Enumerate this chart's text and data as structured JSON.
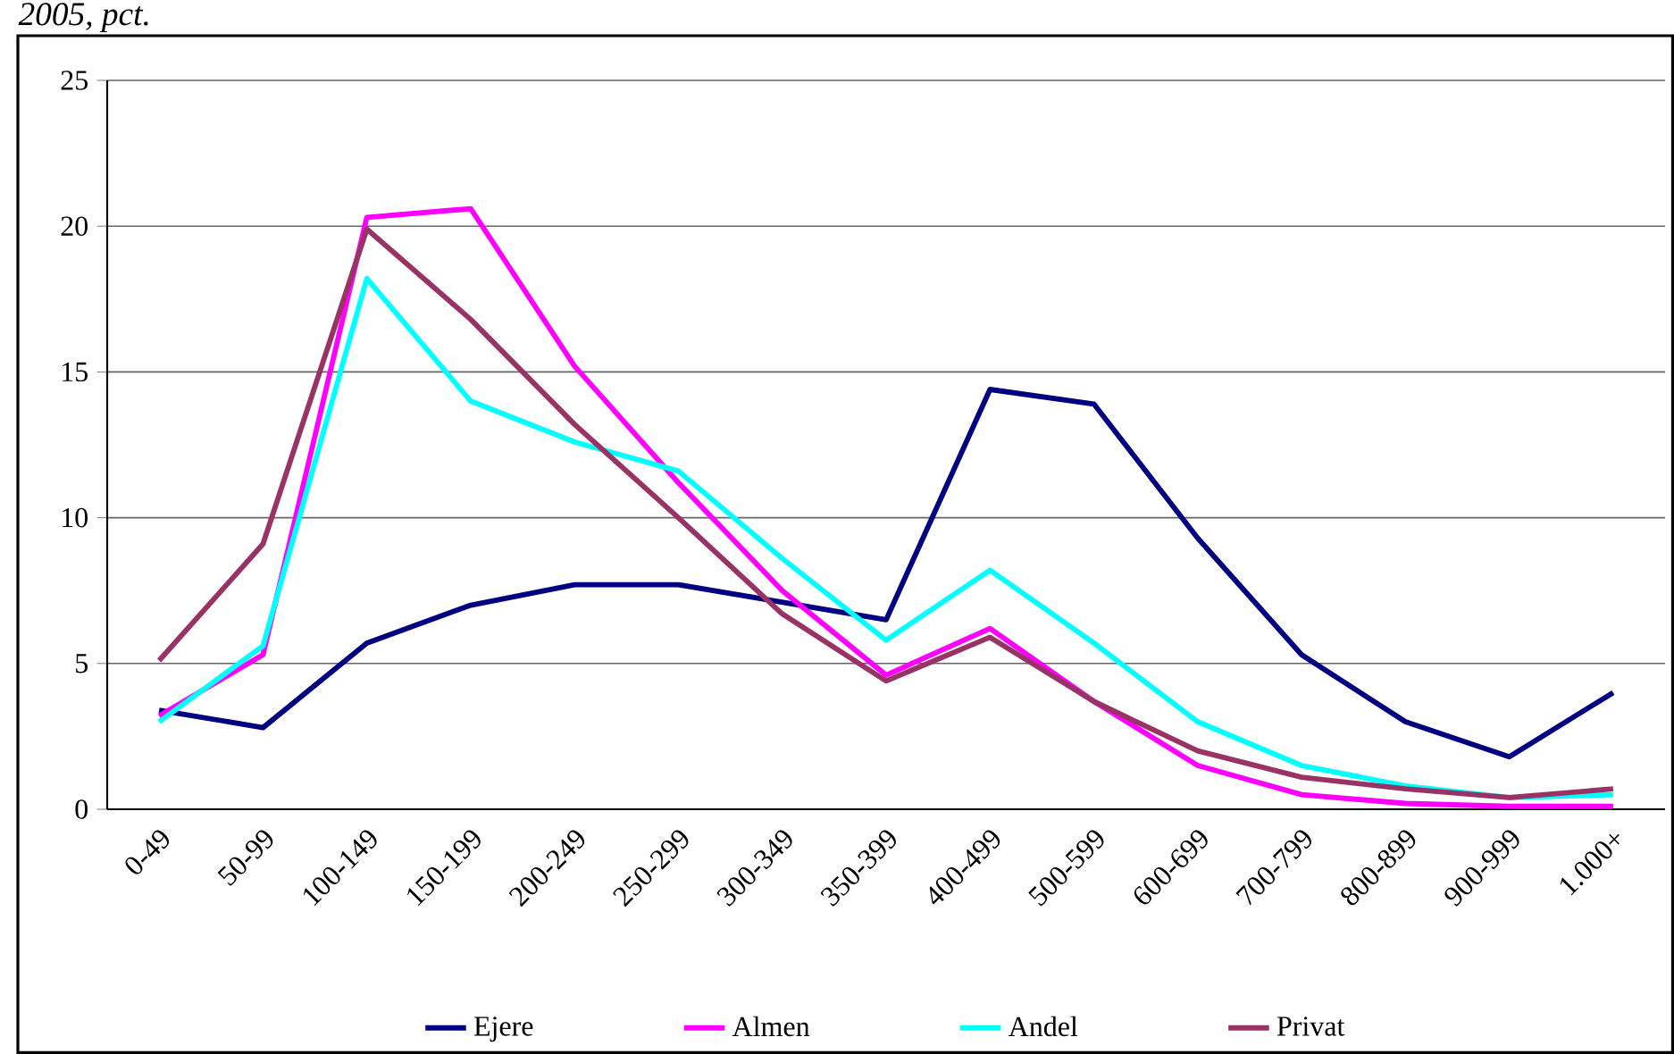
{
  "chart_data": {
    "type": "line",
    "title": "2005, pct.",
    "categories": [
      "0-49",
      "50-99",
      "100-149",
      "150-199",
      "200-249",
      "250-299",
      "300-349",
      "350-399",
      "400-499",
      "500-599",
      "600-699",
      "700-799",
      "800-899",
      "900-999",
      "1.000+"
    ],
    "series": [
      {
        "name": "Ejere",
        "color": "#000080",
        "values": [
          3.4,
          2.8,
          5.7,
          7.0,
          7.7,
          7.7,
          7.1,
          6.5,
          14.4,
          13.9,
          9.3,
          5.3,
          3.0,
          1.8,
          4.0
        ]
      },
      {
        "name": "Almen",
        "color": "#ff00ff",
        "values": [
          3.2,
          5.3,
          20.3,
          20.6,
          15.2,
          11.2,
          7.5,
          4.6,
          6.2,
          3.7,
          1.5,
          0.5,
          0.2,
          0.1,
          0.1
        ]
      },
      {
        "name": "Andel",
        "color": "#00ffff",
        "values": [
          3.0,
          5.6,
          18.2,
          14.0,
          12.6,
          11.6,
          8.6,
          5.8,
          8.2,
          5.7,
          3.0,
          1.5,
          0.8,
          0.4,
          0.5
        ]
      },
      {
        "name": "Privat",
        "color": "#993366",
        "values": [
          5.1,
          9.1,
          19.9,
          16.8,
          13.2,
          10.0,
          6.7,
          4.4,
          5.9,
          3.7,
          2.0,
          1.1,
          0.7,
          0.4,
          0.7
        ]
      }
    ],
    "ylim": [
      0,
      25
    ],
    "yticks": [
      0,
      5,
      10,
      15,
      20,
      25
    ],
    "grid": "y",
    "legend": "bottom",
    "marker": "none",
    "line_style": "solid"
  }
}
